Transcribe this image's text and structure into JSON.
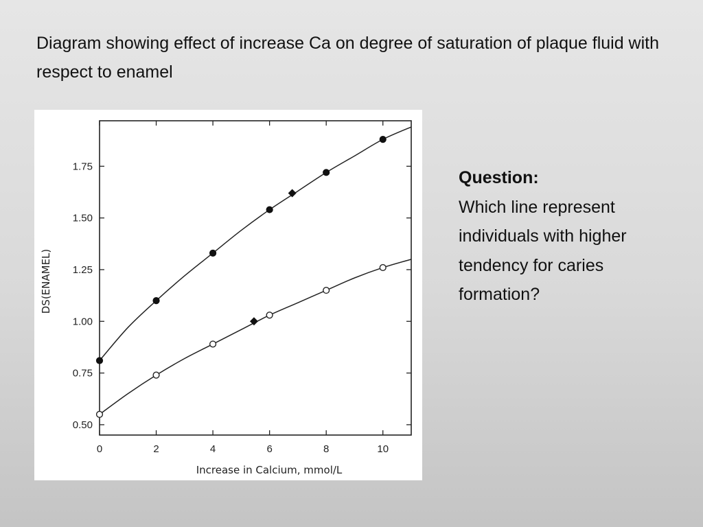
{
  "slide": {
    "title": "Diagram showing effect of increase Ca on degree of saturation of plaque fluid with respect to enamel",
    "question_heading": "Question:",
    "question_lines": [
      "Which line represent",
      "individuals with higher",
      "tendency for caries",
      "formation?"
    ]
  },
  "chart_data": {
    "type": "line",
    "xlabel": "Increase in Calcium, mmol/L",
    "ylabel": "DS(ENAMEL)",
    "xlim": [
      0,
      11
    ],
    "ylim": [
      0.45,
      1.97
    ],
    "xticks": [
      0,
      2,
      4,
      6,
      8,
      10
    ],
    "yticks": [
      0.5,
      0.75,
      1.0,
      1.25,
      1.5,
      1.75
    ],
    "xtick_labels": [
      "0",
      "2",
      "4",
      "6",
      "8",
      "10"
    ],
    "ytick_labels": [
      "0.50",
      "0.75",
      "1.00",
      "1.25",
      "1.50",
      "1.75"
    ],
    "grid": false,
    "series": [
      {
        "marker": "filled-circle",
        "x": [
          0,
          2,
          4,
          6,
          8,
          10
        ],
        "y": [
          0.81,
          1.1,
          1.33,
          1.54,
          1.72,
          1.88
        ],
        "curve": {
          "x": [
            0,
            1,
            2,
            3,
            4,
            5,
            6,
            7,
            8,
            9,
            10,
            11
          ],
          "y": [
            0.81,
            0.97,
            1.1,
            1.22,
            1.33,
            1.44,
            1.54,
            1.63,
            1.72,
            1.8,
            1.88,
            1.94
          ]
        },
        "highlight": {
          "marker": "filled-diamond",
          "x": 6.8,
          "y": 1.62
        }
      },
      {
        "marker": "open-circle",
        "x": [
          0,
          2,
          4,
          6,
          8,
          10
        ],
        "y": [
          0.55,
          0.74,
          0.89,
          1.03,
          1.15,
          1.26
        ],
        "curve": {
          "x": [
            0,
            1,
            2,
            3,
            4,
            5,
            6,
            7,
            8,
            9,
            10,
            11
          ],
          "y": [
            0.55,
            0.65,
            0.74,
            0.82,
            0.89,
            0.96,
            1.03,
            1.09,
            1.15,
            1.21,
            1.26,
            1.3
          ]
        },
        "highlight": {
          "marker": "filled-diamond",
          "x": 5.45,
          "y": 1.0
        }
      }
    ]
  }
}
